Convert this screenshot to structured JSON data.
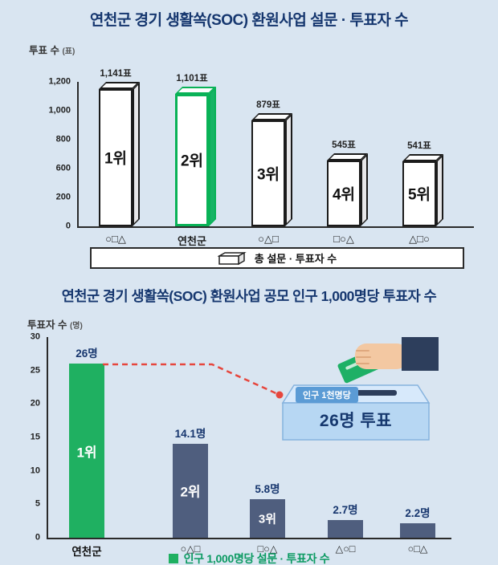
{
  "page": {
    "background": "#d9e5f1",
    "title_color": "#16376f"
  },
  "chart_data": [
    {
      "type": "bar",
      "title": "연천군 경기 생활쏙(SOC) 환원사업 설문 · 투표자 수",
      "ylabel": "투표 수",
      "ylabel_unit": "(표)",
      "ylim": [
        0,
        1200
      ],
      "y_ticks": [
        "1,200",
        "1,000",
        "800",
        "600",
        "200",
        "0"
      ],
      "categories": [
        "○□△",
        "연천군",
        "○△□",
        "□○△",
        "△□○"
      ],
      "values": [
        1141,
        1101,
        879,
        545,
        541
      ],
      "value_labels": [
        "1,141표",
        "1,101표",
        "879표",
        "545표",
        "541표"
      ],
      "rank_labels": [
        "1위",
        "2위",
        "3위",
        "4위",
        "5위"
      ],
      "highlight_index": 1,
      "bar_color": "#ffffff",
      "highlight_color": "#09b257",
      "legend": "총 설문 · 투표자 수",
      "grid": false,
      "legend_position": "bottom"
    },
    {
      "type": "bar",
      "title": "연천군 경기 생활쏙(SOC) 환원사업 공모 인구 1,000명당 투표자 수",
      "ylabel": "투표자 수",
      "ylabel_unit": "(명)",
      "ylim": [
        0,
        30
      ],
      "y_ticks": [
        "30",
        "25",
        "20",
        "15",
        "10",
        "5",
        "0"
      ],
      "categories": [
        "연천군",
        "○△□",
        "□○△",
        "△○□",
        "○□△"
      ],
      "values": [
        26,
        14.1,
        5.8,
        2.7,
        2.2
      ],
      "value_labels": [
        "26명",
        "14.1명",
        "5.8명",
        "2.7명",
        "2.2명"
      ],
      "rank_labels": [
        "1위",
        "2위",
        "3위",
        "",
        ""
      ],
      "highlight_index": 0,
      "bar_color": "#4f5e7e",
      "highlight_color": "#1fb061",
      "connector_color": "#e6463d",
      "callout": {
        "ribbon": "인구 1천명당",
        "label": "26명 투표"
      },
      "caption": "인구 1,000명당 설문 · 투표자 수",
      "grid": false
    }
  ]
}
